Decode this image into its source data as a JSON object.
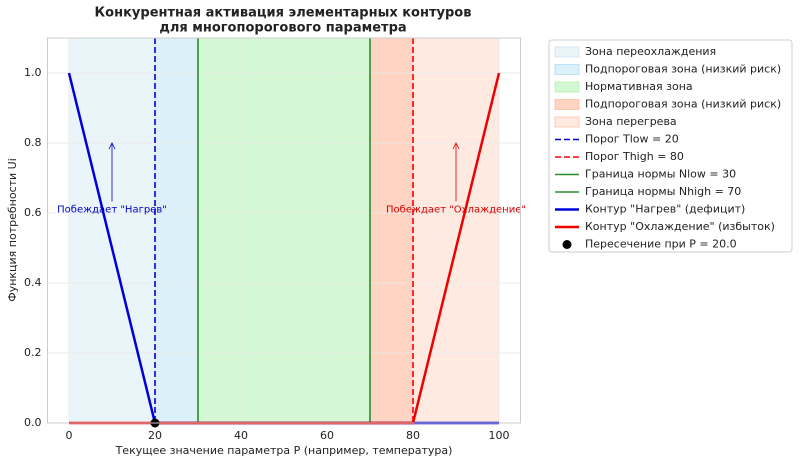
{
  "chart_data": {
    "type": "line",
    "title": [
      "Конкурентная активация элементарных контуров",
      "для многопорогового параметра"
    ],
    "xlabel": "Текущее значение параметра P (например, температура)",
    "ylabel": "Функция потребности Ui",
    "xlim": [
      -5,
      105
    ],
    "ylim": [
      0,
      1.1
    ],
    "xticks": [
      0,
      20,
      40,
      60,
      80,
      100
    ],
    "yticks": [
      {
        "value": 0,
        "label": "0.0"
      },
      0.2,
      0.4,
      0.6,
      0.8,
      {
        "value": 1,
        "label": "1.0"
      }
    ],
    "grid": true,
    "zones": [
      {
        "name": "Зона переохлаждения",
        "x": [
          0,
          20
        ],
        "color": "#add8e6",
        "alpha": 0.25
      },
      {
        "name": "Подпороговая зона (низкий риск)",
        "x": [
          20,
          30
        ],
        "color": "#87ceeb",
        "alpha": 0.3
      },
      {
        "name": "Нормативная зона",
        "x": [
          30,
          70
        ],
        "color": "#90ee90",
        "alpha": 0.4
      },
      {
        "name": "Подпороговая зона (низкий риск)",
        "x": [
          70,
          80
        ],
        "color": "#ffa07a",
        "alpha": 0.45
      },
      {
        "name": "Зона перегрева",
        "x": [
          80,
          100
        ],
        "color": "#ffa07a",
        "alpha": 0.22
      }
    ],
    "vlines": [
      {
        "name": "Порог Tlow = 20",
        "x": 20,
        "color": "#0000dd",
        "style": "dashed"
      },
      {
        "name": "Порог Thigh = 80",
        "x": 80,
        "color": "#ff0000",
        "style": "dashed"
      },
      {
        "name": "Граница нормы Nlow = 30",
        "x": 30,
        "color": "#2e8b2e",
        "style": "solid"
      },
      {
        "name": "Граница нормы Nhigh = 70",
        "x": 70,
        "color": "#2e8b2e",
        "style": "solid"
      }
    ],
    "series": [
      {
        "name": "Контур \"Нагрев\" (дефицит)",
        "color": "#0000dd",
        "x": [
          0,
          20,
          100
        ],
        "values": [
          1,
          0,
          0
        ]
      },
      {
        "name": "Контур \"Охлаждение\" (избыток)",
        "color": "#ee0000",
        "x": [
          0,
          80,
          100
        ],
        "values": [
          0,
          0,
          1
        ]
      }
    ],
    "point": {
      "name": "Пересечение при P = 20.0",
      "x": 20,
      "y": 0,
      "color": "#000000"
    },
    "annotations": [
      {
        "text": "Побеждает \"Нагрев\"",
        "xy": [
          10,
          0.8
        ],
        "text_xy": [
          10,
          0.61
        ],
        "color": "#0000cc"
      },
      {
        "text": "Побеждает \"Охлаждение\"",
        "xy": [
          90,
          0.8
        ],
        "text_xy": [
          90,
          0.61
        ],
        "color": "#dd0000"
      }
    ]
  }
}
